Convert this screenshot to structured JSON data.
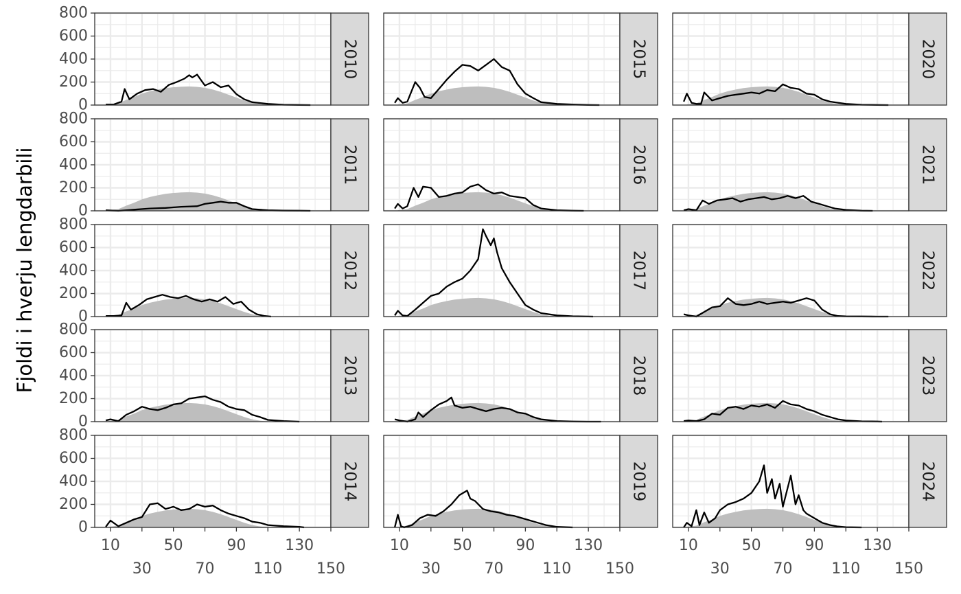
{
  "chart_data": {
    "type": "area",
    "ylabel": "Fjoldi i hverju lengdarbili",
    "xlabel": "",
    "xlim": [
      0,
      150
    ],
    "ylim": [
      0,
      800
    ],
    "x_ticks": [
      10,
      30,
      50,
      70,
      90,
      110,
      130,
      150
    ],
    "y_ticks": [
      0,
      200,
      400,
      600,
      800
    ],
    "grid": true,
    "legend": "none",
    "colors": {
      "reference_area": "#bebebe",
      "year_line": "#000000",
      "strip": "#d9d9d9",
      "gridline": "#ebebeb"
    },
    "reference": {
      "description_values": "area series shared by all panels",
      "x": [
        9,
        15,
        20,
        25,
        30,
        35,
        40,
        45,
        50,
        55,
        60,
        65,
        70,
        75,
        80,
        85,
        90,
        95,
        100,
        105,
        110
      ],
      "values": [
        5,
        15,
        45,
        70,
        100,
        120,
        135,
        148,
        155,
        160,
        162,
        158,
        150,
        135,
        115,
        90,
        65,
        40,
        20,
        8,
        2
      ]
    },
    "panels": [
      {
        "year": "2010",
        "x": [
          7,
          12,
          17,
          19,
          22,
          27,
          32,
          37,
          42,
          47,
          52,
          57,
          60,
          62,
          65,
          70,
          75,
          80,
          85,
          90,
          95,
          100,
          110,
          120,
          130,
          137
        ],
        "values": [
          5,
          5,
          30,
          140,
          50,
          100,
          130,
          140,
          115,
          175,
          200,
          230,
          260,
          240,
          265,
          170,
          200,
          155,
          170,
          95,
          50,
          25,
          10,
          3,
          1,
          0
        ]
      },
      {
        "year": "2011",
        "x": [
          7,
          15,
          25,
          35,
          45,
          55,
          65,
          70,
          75,
          80,
          85,
          90,
          95,
          100,
          110,
          120,
          130,
          137
        ],
        "values": [
          5,
          0,
          10,
          20,
          25,
          35,
          40,
          60,
          70,
          80,
          70,
          70,
          40,
          15,
          5,
          2,
          1,
          0
        ]
      },
      {
        "year": "2012",
        "x": [
          7,
          12,
          17,
          20,
          23,
          28,
          33,
          38,
          43,
          48,
          53,
          58,
          63,
          68,
          73,
          78,
          83,
          88,
          93,
          98,
          103,
          108,
          112
        ],
        "values": [
          5,
          5,
          10,
          120,
          60,
          100,
          150,
          170,
          190,
          170,
          160,
          180,
          150,
          130,
          150,
          130,
          170,
          110,
          130,
          60,
          20,
          5,
          0
        ]
      },
      {
        "year": "2013",
        "x": [
          7,
          10,
          15,
          20,
          25,
          30,
          35,
          40,
          45,
          50,
          55,
          60,
          65,
          70,
          75,
          80,
          85,
          90,
          95,
          100,
          105,
          110,
          120,
          130
        ],
        "values": [
          10,
          20,
          5,
          60,
          90,
          130,
          110,
          100,
          120,
          150,
          160,
          200,
          210,
          220,
          190,
          170,
          130,
          110,
          100,
          60,
          40,
          15,
          5,
          0
        ]
      },
      {
        "year": "2014",
        "x": [
          7,
          10,
          15,
          20,
          25,
          30,
          35,
          40,
          45,
          50,
          55,
          60,
          65,
          70,
          75,
          80,
          85,
          90,
          95,
          100,
          105,
          110,
          120,
          130,
          133
        ],
        "values": [
          5,
          60,
          10,
          40,
          70,
          90,
          200,
          210,
          160,
          180,
          150,
          160,
          200,
          180,
          190,
          150,
          120,
          100,
          80,
          50,
          40,
          20,
          10,
          5,
          0
        ]
      },
      {
        "year": "2015",
        "x": [
          7,
          9,
          12,
          15,
          20,
          23,
          26,
          30,
          35,
          40,
          45,
          50,
          55,
          60,
          65,
          70,
          75,
          80,
          85,
          90,
          95,
          100,
          110,
          120,
          130,
          137
        ],
        "values": [
          20,
          60,
          20,
          30,
          200,
          150,
          70,
          60,
          140,
          220,
          290,
          350,
          340,
          300,
          350,
          400,
          330,
          300,
          180,
          100,
          60,
          25,
          10,
          5,
          1,
          0
        ]
      },
      {
        "year": "2016",
        "x": [
          7,
          9,
          12,
          15,
          19,
          22,
          25,
          30,
          35,
          40,
          45,
          50,
          55,
          60,
          65,
          70,
          75,
          80,
          85,
          90,
          95,
          100,
          110,
          120,
          127
        ],
        "values": [
          20,
          60,
          20,
          40,
          200,
          120,
          210,
          200,
          120,
          130,
          150,
          160,
          210,
          230,
          180,
          150,
          160,
          130,
          120,
          110,
          50,
          20,
          5,
          1,
          0
        ]
      },
      {
        "year": "2017",
        "x": [
          7,
          9,
          12,
          15,
          20,
          25,
          30,
          35,
          40,
          45,
          50,
          55,
          60,
          63,
          65,
          68,
          70,
          72,
          75,
          80,
          85,
          90,
          95,
          100,
          110,
          120,
          133
        ],
        "values": [
          10,
          50,
          10,
          5,
          60,
          120,
          180,
          200,
          260,
          300,
          330,
          400,
          500,
          760,
          700,
          620,
          680,
          560,
          420,
          300,
          200,
          100,
          60,
          30,
          10,
          3,
          0
        ]
      },
      {
        "year": "2018",
        "x": [
          7,
          10,
          15,
          20,
          22,
          25,
          30,
          35,
          40,
          43,
          45,
          50,
          55,
          60,
          65,
          70,
          75,
          80,
          85,
          90,
          95,
          100,
          110,
          120,
          130,
          138
        ],
        "values": [
          20,
          10,
          0,
          20,
          80,
          40,
          100,
          150,
          180,
          210,
          140,
          120,
          130,
          110,
          90,
          110,
          120,
          110,
          80,
          70,
          40,
          20,
          5,
          1,
          0,
          0
        ]
      },
      {
        "year": "2019",
        "x": [
          7,
          9,
          11,
          13,
          18,
          23,
          28,
          33,
          38,
          43,
          48,
          53,
          55,
          58,
          63,
          68,
          73,
          78,
          83,
          88,
          93,
          98,
          103,
          110,
          120
        ],
        "values": [
          0,
          110,
          10,
          0,
          20,
          80,
          110,
          100,
          140,
          200,
          280,
          320,
          250,
          230,
          160,
          140,
          130,
          110,
          100,
          80,
          60,
          40,
          20,
          5,
          0
        ]
      },
      {
        "year": "2020",
        "x": [
          7,
          9,
          12,
          15,
          18,
          20,
          25,
          30,
          35,
          40,
          45,
          50,
          55,
          60,
          65,
          70,
          75,
          80,
          85,
          90,
          95,
          100,
          110,
          120,
          130,
          137
        ],
        "values": [
          30,
          100,
          20,
          10,
          10,
          110,
          40,
          60,
          80,
          90,
          100,
          110,
          100,
          130,
          120,
          180,
          150,
          140,
          100,
          90,
          50,
          30,
          10,
          3,
          1,
          0
        ]
      },
      {
        "year": "2021",
        "x": [
          7,
          10,
          15,
          19,
          23,
          28,
          33,
          38,
          43,
          48,
          53,
          58,
          63,
          68,
          73,
          78,
          83,
          88,
          93,
          98,
          103,
          110,
          120,
          127
        ],
        "values": [
          5,
          15,
          5,
          90,
          60,
          90,
          100,
          110,
          80,
          100,
          110,
          120,
          100,
          110,
          130,
          110,
          130,
          80,
          60,
          40,
          20,
          8,
          1,
          0
        ]
      },
      {
        "year": "2022",
        "x": [
          7,
          10,
          15,
          20,
          25,
          30,
          35,
          40,
          45,
          50,
          55,
          60,
          65,
          70,
          75,
          80,
          85,
          90,
          95,
          100,
          105,
          110,
          120,
          130,
          137
        ],
        "values": [
          20,
          10,
          0,
          40,
          80,
          90,
          160,
          110,
          100,
          110,
          130,
          110,
          120,
          130,
          120,
          140,
          160,
          140,
          60,
          20,
          5,
          2,
          1,
          0,
          0
        ]
      },
      {
        "year": "2023",
        "x": [
          7,
          10,
          15,
          20,
          25,
          30,
          35,
          40,
          45,
          50,
          55,
          60,
          65,
          70,
          75,
          80,
          85,
          90,
          95,
          100,
          105,
          110,
          120,
          130,
          133
        ],
        "values": [
          5,
          10,
          5,
          20,
          70,
          60,
          120,
          130,
          110,
          140,
          130,
          150,
          120,
          180,
          150,
          140,
          110,
          90,
          60,
          40,
          20,
          10,
          3,
          1,
          0
        ]
      },
      {
        "year": "2024",
        "x": [
          7,
          9,
          12,
          15,
          17,
          20,
          23,
          27,
          30,
          35,
          40,
          45,
          50,
          55,
          58,
          60,
          63,
          65,
          68,
          70,
          75,
          78,
          80,
          83,
          85,
          90,
          95,
          100,
          105,
          110,
          120
        ],
        "values": [
          0,
          40,
          10,
          150,
          20,
          130,
          40,
          80,
          150,
          200,
          220,
          250,
          300,
          400,
          540,
          300,
          420,
          250,
          380,
          180,
          450,
          200,
          280,
          150,
          120,
          80,
          40,
          20,
          8,
          2,
          0
        ]
      }
    ]
  }
}
